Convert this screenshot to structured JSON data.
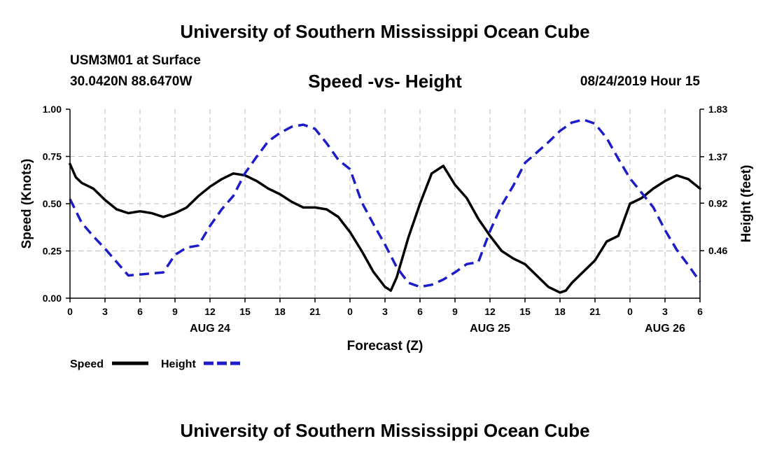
{
  "header": {
    "title": "University of Southern Mississippi Ocean Cube",
    "station": "USM3M01 at Surface",
    "coords": "30.0420N 88.6470W",
    "chart_title": "Speed -vs- Height",
    "timestamp": "08/24/2019 Hour 15"
  },
  "footer": {
    "title": "University of Southern Mississippi Ocean Cube"
  },
  "colors": {
    "speed": "#000000",
    "height": "#1c1cc8",
    "grid": "#bdbdbd"
  },
  "chart_data": {
    "type": "line",
    "title": "Speed -vs- Height",
    "xlabel": "Forecast (Z)",
    "ylabel": "Speed (Knots)",
    "y2label": "Height (feet)",
    "x_range": [
      0,
      54
    ],
    "ylim": [
      0,
      1.0
    ],
    "y2lim": [
      0,
      1.83
    ],
    "grid": true,
    "x_ticks": [
      {
        "x": 0,
        "label": "0"
      },
      {
        "x": 3,
        "label": "3"
      },
      {
        "x": 6,
        "label": "6"
      },
      {
        "x": 9,
        "label": "9"
      },
      {
        "x": 12,
        "label": "12"
      },
      {
        "x": 15,
        "label": "15"
      },
      {
        "x": 18,
        "label": "18"
      },
      {
        "x": 21,
        "label": "21"
      },
      {
        "x": 24,
        "label": "0"
      },
      {
        "x": 27,
        "label": "3"
      },
      {
        "x": 30,
        "label": "6"
      },
      {
        "x": 33,
        "label": "9"
      },
      {
        "x": 36,
        "label": "12"
      },
      {
        "x": 39,
        "label": "15"
      },
      {
        "x": 42,
        "label": "18"
      },
      {
        "x": 45,
        "label": "21"
      },
      {
        "x": 48,
        "label": "0"
      },
      {
        "x": 51,
        "label": "3"
      },
      {
        "x": 54,
        "label": "6"
      }
    ],
    "date_labels": [
      {
        "x": 12,
        "label": "AUG 24"
      },
      {
        "x": 36,
        "label": "AUG 25"
      },
      {
        "x": 51,
        "label": "AUG 26"
      }
    ],
    "y_ticks": [
      {
        "v": 0.0,
        "label": "0.00"
      },
      {
        "v": 0.25,
        "label": "0.25"
      },
      {
        "v": 0.5,
        "label": "0.50"
      },
      {
        "v": 0.75,
        "label": "0.75"
      },
      {
        "v": 1.0,
        "label": "1.00"
      }
    ],
    "y2_ticks": [
      {
        "v": 0.46,
        "label": "0.46"
      },
      {
        "v": 0.92,
        "label": "0.92"
      },
      {
        "v": 1.37,
        "label": "1.37"
      },
      {
        "v": 1.83,
        "label": "1.83"
      }
    ],
    "legend": [
      {
        "name": "Speed",
        "style": "solid"
      },
      {
        "name": "Height",
        "style": "dashed"
      }
    ],
    "series": [
      {
        "name": "Speed",
        "axis": "left",
        "style": "solid",
        "x": [
          0,
          0.5,
          1,
          2,
          3,
          4,
          5,
          6,
          7,
          8,
          9,
          10,
          11,
          12,
          13,
          14,
          15,
          16,
          17,
          18,
          19,
          20,
          21,
          22,
          23,
          24,
          25,
          26,
          27,
          27.5,
          28,
          29,
          30,
          31,
          32,
          33,
          34,
          35,
          36,
          37,
          38,
          39,
          40,
          41,
          42,
          42.5,
          43,
          44,
          45,
          46,
          47,
          48,
          49,
          50,
          51,
          52,
          53,
          54
        ],
        "values": [
          0.71,
          0.64,
          0.61,
          0.58,
          0.52,
          0.47,
          0.45,
          0.46,
          0.45,
          0.43,
          0.45,
          0.48,
          0.54,
          0.59,
          0.63,
          0.66,
          0.65,
          0.62,
          0.58,
          0.55,
          0.51,
          0.48,
          0.48,
          0.47,
          0.43,
          0.35,
          0.25,
          0.14,
          0.06,
          0.04,
          0.11,
          0.32,
          0.5,
          0.66,
          0.7,
          0.6,
          0.53,
          0.42,
          0.33,
          0.25,
          0.21,
          0.18,
          0.12,
          0.06,
          0.03,
          0.04,
          0.08,
          0.14,
          0.2,
          0.3,
          0.33,
          0.5,
          0.53,
          0.58,
          0.62,
          0.65,
          0.63,
          0.58
        ]
      },
      {
        "name": "Height",
        "axis": "right",
        "style": "dashed",
        "x": [
          0,
          1,
          2,
          3,
          4,
          5,
          6,
          7,
          8,
          9,
          10,
          11,
          12,
          13,
          14,
          15,
          16,
          17,
          18,
          19,
          20,
          21,
          22,
          23,
          24,
          25,
          26,
          27,
          28,
          29,
          30,
          31,
          32,
          33,
          34,
          35,
          36,
          37,
          38,
          39,
          40,
          41,
          42,
          43,
          44,
          45,
          46,
          47,
          48,
          49,
          50,
          51,
          52,
          53,
          54
        ],
        "values": [
          0.96,
          0.73,
          0.6,
          0.48,
          0.35,
          0.22,
          0.23,
          0.24,
          0.25,
          0.42,
          0.49,
          0.51,
          0.7,
          0.86,
          0.99,
          1.21,
          1.37,
          1.52,
          1.6,
          1.66,
          1.68,
          1.64,
          1.5,
          1.34,
          1.25,
          0.93,
          0.72,
          0.52,
          0.3,
          0.15,
          0.11,
          0.13,
          0.18,
          0.25,
          0.33,
          0.35,
          0.65,
          0.9,
          1.09,
          1.31,
          1.41,
          1.51,
          1.62,
          1.7,
          1.73,
          1.69,
          1.55,
          1.35,
          1.16,
          1.02,
          0.88,
          0.66,
          0.47,
          0.32,
          0.16
        ]
      }
    ]
  }
}
